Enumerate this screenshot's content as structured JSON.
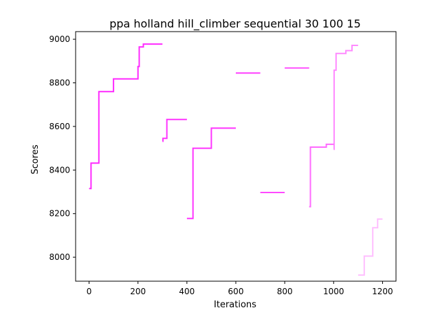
{
  "chart_data": {
    "type": "line",
    "title": "ppa holland hill_climber sequential 30 100 15",
    "xlabel": "Iterations",
    "ylabel": "Scores",
    "xlim": [
      -55,
      1255
    ],
    "ylim": [
      7890,
      9035
    ],
    "xticks": [
      0,
      200,
      400,
      600,
      800,
      1000,
      1200
    ],
    "yticks": [
      8000,
      8200,
      8400,
      8600,
      8800,
      9000
    ],
    "grid": false,
    "legend": "none",
    "line_style": "step",
    "series": [
      {
        "color": "#ff29ff",
        "opacity": 1.0,
        "x": [
          0,
          8,
          8,
          40,
          40,
          100,
          100,
          200,
          200,
          205,
          205,
          222,
          222,
          300
        ],
        "y": [
          8315,
          8315,
          8432,
          8432,
          8760,
          8760,
          8818,
          8818,
          8875,
          8875,
          8965,
          8965,
          8978,
          8978
        ]
      },
      {
        "color": "#ff29ff",
        "opacity": 0.95,
        "x": [
          300,
          302,
          302,
          318,
          318,
          400
        ],
        "y": [
          8532,
          8532,
          8545,
          8545,
          8632,
          8632
        ]
      },
      {
        "color": "#ff29ff",
        "opacity": 0.95,
        "x": [
          400,
          425,
          425,
          500,
          500,
          600
        ],
        "y": [
          8178,
          8178,
          8500,
          8500,
          8592,
          8592
        ]
      },
      {
        "color": "#ff29ff",
        "opacity": 0.9,
        "x": [
          600,
          700
        ],
        "y": [
          8845,
          8845
        ]
      },
      {
        "color": "#ff29ff",
        "opacity": 0.85,
        "x": [
          700,
          800
        ],
        "y": [
          8297,
          8297
        ]
      },
      {
        "color": "#ff29ff",
        "opacity": 0.8,
        "x": [
          800,
          900
        ],
        "y": [
          8868,
          8868
        ]
      },
      {
        "color": "#ff29ff",
        "opacity": 0.7,
        "x": [
          900,
          905,
          905,
          970,
          970,
          1000
        ],
        "y": [
          8232,
          8232,
          8505,
          8505,
          8518,
          8518
        ]
      },
      {
        "color": "#ff29ff",
        "opacity": 0.55,
        "x": [
          1000,
          1002,
          1002,
          1010,
          1010,
          1050,
          1050,
          1075,
          1075,
          1100
        ],
        "y": [
          8495,
          8495,
          8858,
          8858,
          8935,
          8935,
          8948,
          8948,
          8972,
          8972
        ]
      },
      {
        "color": "#ff29ff",
        "opacity": 0.3,
        "x": [
          1100,
          1125,
          1125,
          1160,
          1160,
          1180,
          1180,
          1200
        ],
        "y": [
          7918,
          7918,
          8005,
          8005,
          8135,
          8135,
          8175,
          8175
        ]
      }
    ]
  }
}
